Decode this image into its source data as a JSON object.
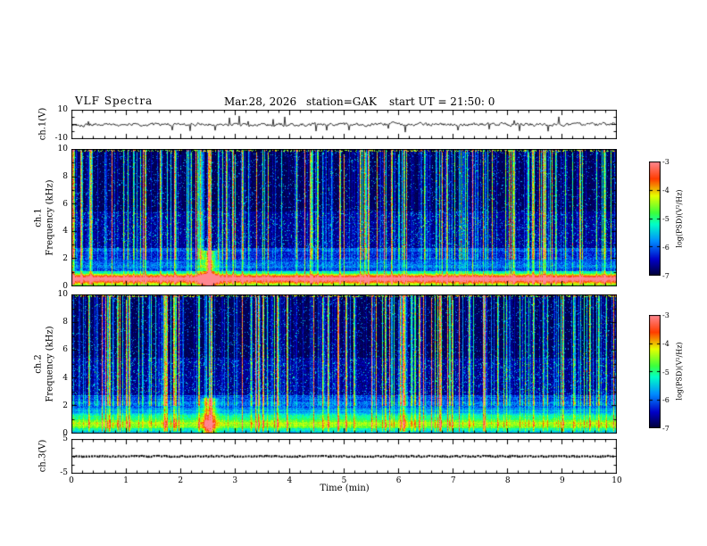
{
  "header": {
    "title": "VLF Spectra",
    "date": "Mar.28, 2026",
    "station": "station=GAK",
    "start_ut": "start UT =  21:50: 0"
  },
  "x_axis": {
    "label": "Time (min)",
    "ticks": [
      "0",
      "1",
      "2",
      "3",
      "4",
      "5",
      "6",
      "7",
      "8",
      "9",
      "10"
    ],
    "range": [
      0,
      10
    ]
  },
  "panels": {
    "ch1_wave": {
      "ylabel": "ch.1(V)",
      "yticks": [
        "10",
        "-10"
      ],
      "ylim": [
        -10,
        10
      ]
    },
    "ch1_spec": {
      "ylabel_line1": "ch.1",
      "ylabel_line2": "Frequency (kHz)",
      "yticks": [
        "10",
        "8",
        "6",
        "4",
        "2",
        "0"
      ],
      "ylim_khz": [
        0,
        10
      ]
    },
    "ch2_spec": {
      "ylabel_line1": "ch.2",
      "ylabel_line2": "Frequency (kHz)",
      "yticks": [
        "10",
        "8",
        "6",
        "4",
        "2",
        "0"
      ],
      "ylim_khz": [
        0,
        10
      ]
    },
    "ch3_wave": {
      "ylabel": "ch.3(V)",
      "yticks": [
        "5",
        "-5"
      ],
      "ylim": [
        -5,
        5
      ]
    }
  },
  "colorbar": {
    "label": "log(PSD)(V²/Hz)",
    "ticks": [
      "-3",
      "-4",
      "-5",
      "-6",
      "-7"
    ],
    "range": [
      -7,
      -3
    ],
    "stops": [
      [
        0,
        [
          0,
          0,
          56
        ]
      ],
      [
        0.14,
        [
          0,
          0,
          200
        ]
      ],
      [
        0.3,
        [
          0,
          140,
          255
        ]
      ],
      [
        0.45,
        [
          0,
          255,
          200
        ]
      ],
      [
        0.55,
        [
          60,
          255,
          60
        ]
      ],
      [
        0.7,
        [
          230,
          255,
          0
        ]
      ],
      [
        0.85,
        [
          255,
          60,
          0
        ]
      ],
      [
        1,
        [
          255,
          135,
          145
        ]
      ]
    ]
  },
  "chart_data": [
    {
      "type": "line",
      "title": "ch.1 time series",
      "ylabel": "ch.1(V)",
      "xlabel": "Time (min)",
      "xlim": [
        0,
        10
      ],
      "ylim": [
        -10,
        10
      ],
      "description": "Broadband noise waveform centered on 0 V, typical excursions about ±2 V with frequent impulsive spikes to roughly ±5 V across the full 10 minutes."
    },
    {
      "type": "heatmap",
      "title": "ch.1 VLF spectrogram",
      "xlabel": "Time (min)",
      "ylabel": "Frequency (kHz)",
      "xlim": [
        0,
        10
      ],
      "ylim": [
        0,
        10
      ],
      "zlabel": "log(PSD)(V²/Hz)",
      "zlim": [
        -7,
        -3
      ],
      "legend_position": "right colorbar",
      "grid": false,
      "features": [
        "intense continuous band below ~1 kHz reaching -3 (red/yellow)",
        "dense blue/cyan banded noise between ~1 and 3 kHz",
        "mostly black background above ~5.5 kHz at -7",
        "many narrow vertical broadband sferic streaks (green/yellow) spanning 0-10 kHz",
        "broadband enhancement blob below ~2.5 kHz near t = 2.5 min"
      ]
    },
    {
      "type": "heatmap",
      "title": "ch.2 VLF spectrogram",
      "xlabel": "Time (min)",
      "ylabel": "Frequency (kHz)",
      "xlim": [
        0,
        10
      ],
      "ylim": [
        0,
        10
      ],
      "zlabel": "log(PSD)(V²/Hz)",
      "zlim": [
        -7,
        -3
      ],
      "legend_position": "right colorbar",
      "grid": false,
      "features": [
        "cyan/green band below ~1.5 kHz around -5",
        "blue banded noise between ~1 and 3 kHz",
        "dark background above ~5 kHz with scattered blue speckle",
        "many narrow vertical broadband sferic streaks spanning 0-10 kHz",
        "broadband enhancement blob below ~2.5 kHz near t = 2.5 min"
      ]
    },
    {
      "type": "line",
      "title": "ch.3 time series",
      "ylabel": "ch.3(V)",
      "xlabel": "Time (min)",
      "xlim": [
        0,
        10
      ],
      "ylim": [
        -5,
        5
      ],
      "values": "constant 0 V (flat thick dark trace for entire interval)"
    }
  ]
}
